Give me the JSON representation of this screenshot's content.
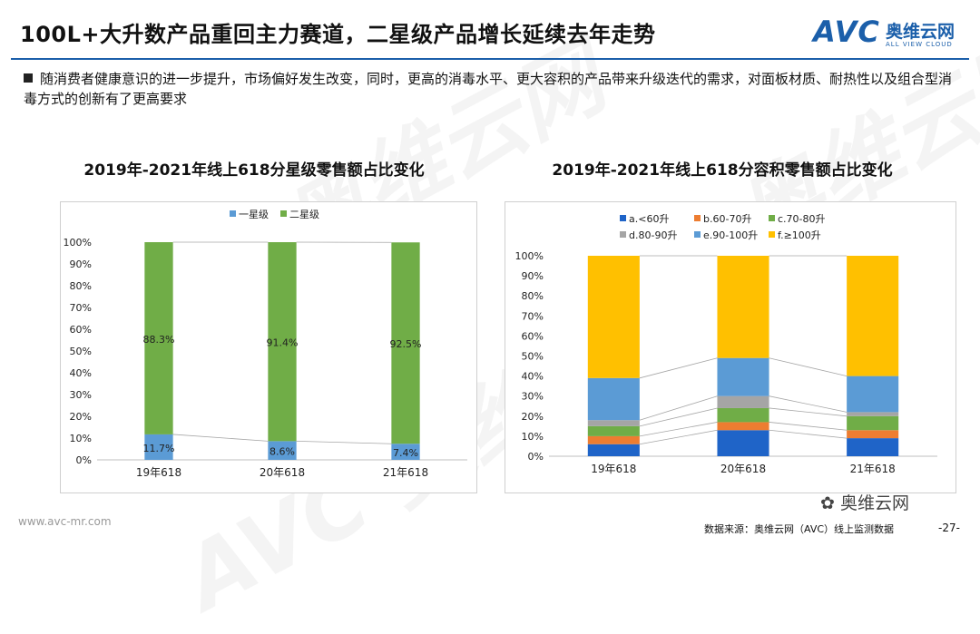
{
  "header": {
    "title": "100L+大升数产品重回主力赛道，二星级产品增长延续去年走势",
    "logo_text": "AVC",
    "logo_cn": "奥维云网",
    "logo_en": "ALL VIEW CLOUD"
  },
  "bullet": "随消费者健康意识的进一步提升，市场偏好发生改变，同时，更高的消毒水平、更大容积的产品带来升级迭代的需求，对面板材质、耐热性以及组合型消毒方式的创新有了更高要求",
  "colors": {
    "brand": "#1b5faa",
    "blue": "#5b9bd5",
    "green": "#70ad47"
  },
  "chart_data": [
    {
      "type": "bar",
      "stacked": true,
      "title": "2019年-2021年线上618分星级零售额占比变化",
      "categories": [
        "19年618",
        "20年618",
        "21年618"
      ],
      "series": [
        {
          "name": "一星级",
          "color": "#5b9bd5",
          "values": [
            11.7,
            8.6,
            7.4
          ],
          "labels": [
            "11.7%",
            "8.6%",
            "7.4%"
          ]
        },
        {
          "name": "二星级",
          "color": "#70ad47",
          "values": [
            88.3,
            91.4,
            92.5
          ],
          "labels": [
            "88.3%",
            "91.4%",
            "92.5%"
          ]
        }
      ],
      "ylim": [
        0,
        100
      ],
      "yticks": [
        "0%",
        "10%",
        "20%",
        "30%",
        "40%",
        "50%",
        "60%",
        "70%",
        "80%",
        "90%",
        "100%"
      ],
      "legend": "top-center"
    },
    {
      "type": "bar",
      "stacked": true,
      "title": "2019年-2021年线上618分容积零售额占比变化",
      "categories": [
        "19年618",
        "20年618",
        "21年618"
      ],
      "series": [
        {
          "name": "a.<60升",
          "color": "#1f64c8",
          "values": [
            6,
            13,
            9
          ]
        },
        {
          "name": "b.60-70升",
          "color": "#ed7d31",
          "values": [
            4,
            4,
            4
          ]
        },
        {
          "name": "c.70-80升",
          "color": "#70ad47",
          "values": [
            5,
            7,
            7
          ]
        },
        {
          "name": "d.80-90升",
          "color": "#a5a5a5",
          "values": [
            3,
            6,
            2
          ]
        },
        {
          "name": "e.90-100升",
          "color": "#5b9bd5",
          "values": [
            21,
            19,
            18
          ]
        },
        {
          "name": "f.≥100升",
          "color": "#ffc000",
          "values": [
            61,
            51,
            60
          ]
        }
      ],
      "ylim": [
        0,
        100
      ],
      "yticks": [
        "0%",
        "10%",
        "20%",
        "30%",
        "40%",
        "50%",
        "60%",
        "70%",
        "80%",
        "90%",
        "100%"
      ],
      "legend": "top-center"
    }
  ],
  "watermark": "AVC 奥维云网",
  "footer": {
    "url": "www.avc-mr.com",
    "wechat": "奥维云网",
    "source": "数据来源：奥维云网（AVC）线上监测数据",
    "page": "-27-"
  }
}
